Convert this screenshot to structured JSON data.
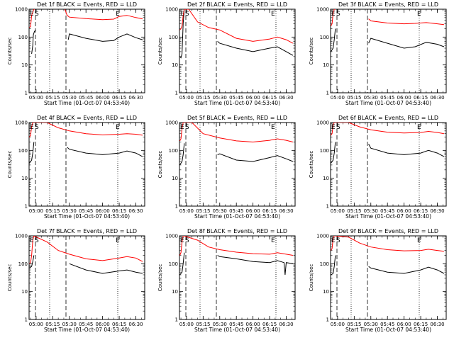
{
  "chart_data": [
    {
      "type": "line",
      "title": "Det 1f BLACK = Events, RED = LLD",
      "xlabel": "Start Time (01-Oct-07 04:53:40)",
      "ylabel": "Counts/sec",
      "xticks": [
        "05:00",
        "05:15",
        "05:30",
        "05:45",
        "06:00",
        "06:15",
        "06:30"
      ],
      "yticks": [
        "1",
        "10",
        "100",
        "1000"
      ],
      "ylim": [
        1,
        1000
      ],
      "yscale": "log",
      "xlim": [
        "04:53:40",
        "06:38:00"
      ],
      "markers": [
        "E",
        "S",
        "E"
      ],
      "series": [
        {
          "name": "BLACK",
          "label": "Events",
          "color": "#000000",
          "x": [
            "04:56:00",
            "04:57:00",
            "04:57:30",
            "04:58:30",
            "04:59:30",
            "05:28",
            "05:29",
            "05:30",
            "05:45",
            "06:00",
            "06:10",
            "06:15",
            "06:22",
            "06:30",
            "06:36"
          ],
          "values": [
            25,
            50,
            120,
            160,
            175,
            null,
            80,
            130,
            90,
            70,
            75,
            100,
            130,
            95,
            80
          ]
        },
        {
          "name": "RED",
          "label": "LLD",
          "color": "#ff0000",
          "x": [
            "04:54",
            "04:55",
            "04:56",
            "04:58",
            "04:59",
            "05:00",
            "05:26",
            "05:28",
            "05:30",
            "05:45",
            "06:00",
            "06:10",
            "06:15",
            "06:22",
            "06:30",
            "06:36"
          ],
          "values": [
            220,
            240,
            600,
            1000,
            1000,
            null,
            1000,
            600,
            520,
            460,
            420,
            440,
            550,
            600,
            500,
            450
          ]
        }
      ]
    },
    {
      "type": "line",
      "title": "Det 2f BLACK = Events, RED = LLD",
      "xlabel": "Start Time (01-Oct-07 04:53:40)",
      "ylabel": "Counts/sec",
      "xticks": [
        "05:00",
        "05:15",
        "05:30",
        "05:45",
        "06:00",
        "06:15",
        "06:30"
      ],
      "yticks": [
        "1",
        "10",
        "100",
        "1000"
      ],
      "ylim": [
        1,
        1000
      ],
      "yscale": "log",
      "xlim": [
        "04:53:40",
        "06:38:00"
      ],
      "markers": [
        "E",
        "S",
        "E"
      ],
      "series": [
        {
          "name": "BLACK",
          "label": "Events",
          "color": "#000000",
          "x": [
            "04:54",
            "04:55",
            "04:56",
            "04:57",
            "04:58",
            "05:25",
            "05:28",
            "05:30",
            "05:45",
            "06:00",
            "06:15",
            "06:22",
            "06:30",
            "06:36"
          ],
          "values": [
            20,
            18,
            25,
            300,
            1000,
            null,
            70,
            60,
            40,
            30,
            40,
            45,
            30,
            22
          ]
        },
        {
          "name": "RED",
          "label": "LLD",
          "color": "#ff0000",
          "x": [
            "04:54",
            "04:55",
            "04:56",
            "04:57",
            "04:58",
            "05:02",
            "05:10",
            "05:20",
            "05:30",
            "05:45",
            "06:00",
            "06:15",
            "06:22",
            "06:30",
            "06:36"
          ],
          "values": [
            180,
            200,
            250,
            600,
            1000,
            1000,
            350,
            220,
            180,
            90,
            70,
            85,
            100,
            80,
            60
          ]
        }
      ]
    },
    {
      "type": "line",
      "title": "Det 3f BLACK = Events, RED = LLD",
      "xlabel": "Start Time (01-Oct-07 04:53:40)",
      "ylabel": "Counts/sec",
      "xticks": [
        "05:00",
        "05:15",
        "05:30",
        "05:45",
        "06:00",
        "06:15",
        "06:30"
      ],
      "yticks": [
        "1",
        "10",
        "100",
        "1000"
      ],
      "ylim": [
        1,
        1000
      ],
      "yscale": "log",
      "xlim": [
        "04:53:40",
        "06:38:00"
      ],
      "markers": [
        "E",
        "S",
        "E"
      ],
      "series": [
        {
          "name": "BLACK",
          "label": "Events",
          "color": "#000000",
          "x": [
            "04:54",
            "04:56",
            "04:57",
            "04:58",
            "05:25",
            "05:28",
            "05:30",
            "05:45",
            "06:00",
            "06:10",
            "06:20",
            "06:30",
            "06:36"
          ],
          "values": [
            30,
            40,
            80,
            200,
            null,
            60,
            90,
            60,
            40,
            45,
            65,
            55,
            45
          ]
        },
        {
          "name": "RED",
          "label": "LLD",
          "color": "#ff0000",
          "x": [
            "04:54",
            "04:55",
            "04:56",
            "04:57",
            "04:58",
            "05:25",
            "05:28",
            "05:30",
            "05:45",
            "06:00",
            "06:10",
            "06:20",
            "06:30",
            "06:36"
          ],
          "values": [
            250,
            300,
            700,
            1000,
            1000,
            null,
            450,
            380,
            320,
            300,
            310,
            330,
            300,
            280
          ]
        }
      ]
    },
    {
      "type": "line",
      "title": "Det 4f BLACK = Events, RED = LLD",
      "xlabel": "Start Time (01-Oct-07 04:53:40)",
      "ylabel": "Counts/sec",
      "xticks": [
        "05:00",
        "05:15",
        "05:30",
        "05:45",
        "06:00",
        "06:15",
        "06:30"
      ],
      "yticks": [
        "1",
        "10",
        "100",
        "1000"
      ],
      "ylim": [
        1,
        1000
      ],
      "yscale": "log",
      "xlim": [
        "04:53:40",
        "06:38:00"
      ],
      "markers": [
        "E",
        "S",
        "E"
      ],
      "series": [
        {
          "name": "BLACK",
          "label": "Events",
          "color": "#000000",
          "x": [
            "04:54",
            "04:56",
            "04:57",
            "04:58",
            "05:25",
            "05:28",
            "05:30",
            "05:45",
            "06:00",
            "06:15",
            "06:22",
            "06:30",
            "06:36"
          ],
          "values": [
            35,
            45,
            80,
            200,
            null,
            130,
            110,
            80,
            70,
            80,
            95,
            80,
            60
          ]
        },
        {
          "name": "RED",
          "label": "LLD",
          "color": "#ff0000",
          "x": [
            "04:54",
            "04:55",
            "04:56",
            "04:57",
            "04:58",
            "05:10",
            "05:20",
            "05:30",
            "05:45",
            "06:00",
            "06:15",
            "06:22",
            "06:30",
            "06:36"
          ],
          "values": [
            300,
            350,
            700,
            1000,
            1000,
            1000,
            650,
            500,
            400,
            360,
            380,
            400,
            380,
            350
          ]
        }
      ]
    },
    {
      "type": "line",
      "title": "Det 5f BLACK = Events, RED = LLD",
      "xlabel": "Start Time (01-Oct-07 04:53:40)",
      "ylabel": "Counts/sec",
      "xticks": [
        "05:00",
        "05:15",
        "05:30",
        "05:45",
        "06:00",
        "06:15",
        "06:30"
      ],
      "yticks": [
        "1",
        "10",
        "100",
        "1000"
      ],
      "ylim": [
        1,
        1000
      ],
      "yscale": "log",
      "xlim": [
        "04:53:40",
        "06:38:00"
      ],
      "markers": [
        "E",
        "S",
        "E"
      ],
      "series": [
        {
          "name": "BLACK",
          "label": "Events",
          "color": "#000000",
          "x": [
            "04:54",
            "04:56",
            "04:57",
            "04:58",
            "05:25",
            "05:28",
            "05:30",
            "05:45",
            "06:00",
            "06:15",
            "06:22",
            "06:30",
            "06:36"
          ],
          "values": [
            30,
            40,
            70,
            180,
            null,
            70,
            75,
            45,
            40,
            55,
            65,
            50,
            40
          ]
        },
        {
          "name": "RED",
          "label": "LLD",
          "color": "#ff0000",
          "x": [
            "04:54",
            "04:55",
            "04:56",
            "04:57",
            "04:58",
            "05:05",
            "05:15",
            "05:30",
            "05:45",
            "06:00",
            "06:15",
            "06:22",
            "06:30",
            "06:36"
          ],
          "values": [
            220,
            260,
            600,
            1000,
            1000,
            1000,
            400,
            280,
            220,
            200,
            230,
            260,
            230,
            200
          ]
        }
      ]
    },
    {
      "type": "line",
      "title": "Det 6f BLACK = Events, RED = LLD",
      "xlabel": "Start Time (01-Oct-07 04:53:40)",
      "ylabel": "Counts/sec",
      "xticks": [
        "05:00",
        "05:15",
        "05:30",
        "05:45",
        "06:00",
        "06:15",
        "06:30"
      ],
      "yticks": [
        "1",
        "10",
        "100",
        "1000"
      ],
      "ylim": [
        1,
        1000
      ],
      "yscale": "log",
      "xlim": [
        "04:53:40",
        "06:38:00"
      ],
      "markers": [
        "E",
        "S",
        "E"
      ],
      "series": [
        {
          "name": "BLACK",
          "label": "Events",
          "color": "#000000",
          "x": [
            "04:54",
            "04:56",
            "04:57",
            "04:58",
            "05:25",
            "05:28",
            "05:30",
            "05:45",
            "06:00",
            "06:15",
            "06:22",
            "06:30",
            "06:36"
          ],
          "values": [
            35,
            45,
            80,
            200,
            null,
            170,
            120,
            80,
            70,
            80,
            100,
            80,
            60
          ]
        },
        {
          "name": "RED",
          "label": "LLD",
          "color": "#ff0000",
          "x": [
            "04:54",
            "04:55",
            "04:56",
            "04:57",
            "04:58",
            "05:10",
            "05:20",
            "05:30",
            "05:45",
            "06:00",
            "06:15",
            "06:22",
            "06:30",
            "06:36"
          ],
          "values": [
            350,
            400,
            800,
            1000,
            1000,
            1000,
            700,
            550,
            450,
            420,
            440,
            480,
            440,
            400
          ]
        }
      ]
    },
    {
      "type": "line",
      "title": "Det 7f BLACK = Events, RED = LLD",
      "xlabel": "Start Time (01-Oct-07 04:53:40)",
      "ylabel": "Counts/sec",
      "xticks": [
        "05:00",
        "05:15",
        "05:30",
        "05:45",
        "06:00",
        "06:15",
        "06:30"
      ],
      "yticks": [
        "1",
        "10",
        "100",
        "1000"
      ],
      "ylim": [
        1,
        1000
      ],
      "yscale": "log",
      "xlim": [
        "04:53:40",
        "06:38:00"
      ],
      "markers": [
        "E",
        "S",
        "E"
      ],
      "series": [
        {
          "name": "BLACK",
          "label": "Events",
          "color": "#000000",
          "x": [
            "04:54",
            "04:56",
            "04:57",
            "04:58",
            "05:28",
            "05:30",
            "05:45",
            "06:00",
            "06:15",
            "06:22",
            "06:30",
            "06:36"
          ],
          "values": [
            70,
            80,
            120,
            200,
            null,
            100,
            60,
            45,
            55,
            60,
            50,
            45
          ]
        },
        {
          "name": "RED",
          "label": "LLD",
          "color": "#ff0000",
          "x": [
            "04:54",
            "04:55",
            "04:56",
            "04:57",
            "04:58",
            "05:10",
            "05:20",
            "05:30",
            "05:45",
            "06:00",
            "06:15",
            "06:22",
            "06:30",
            "06:36"
          ],
          "values": [
            100,
            110,
            200,
            700,
            1000,
            600,
            300,
            220,
            150,
            130,
            160,
            180,
            160,
            120
          ]
        }
      ]
    },
    {
      "type": "line",
      "title": "Det 8f BLACK = Events, RED = LLD",
      "xlabel": "Start Time (01-Oct-07 04:53:40)",
      "ylabel": "Counts/sec",
      "xticks": [
        "05:00",
        "05:15",
        "05:30",
        "05:45",
        "06:00",
        "06:15",
        "06:30"
      ],
      "yticks": [
        "1",
        "10",
        "100",
        "1000"
      ],
      "ylim": [
        1,
        1000
      ],
      "yscale": "log",
      "xlim": [
        "04:53:40",
        "06:38:00"
      ],
      "markers": [
        "E",
        "S",
        "E"
      ],
      "series": [
        {
          "name": "BLACK",
          "label": "Events",
          "color": "#000000",
          "x": [
            "04:54",
            "04:56",
            "04:57",
            "04:58",
            "05:25",
            "05:28",
            "05:30",
            "05:45",
            "06:00",
            "06:15",
            "06:22",
            "06:28",
            "06:29",
            "06:30",
            "06:36"
          ],
          "values": [
            40,
            50,
            100,
            250,
            null,
            200,
            180,
            150,
            120,
            110,
            130,
            110,
            40,
            110,
            100
          ]
        },
        {
          "name": "RED",
          "label": "LLD",
          "color": "#ff0000",
          "x": [
            "04:54",
            "04:55",
            "04:56",
            "04:57",
            "04:58",
            "05:10",
            "05:20",
            "05:30",
            "05:45",
            "06:00",
            "06:15",
            "06:22",
            "06:30",
            "06:36"
          ],
          "values": [
            200,
            250,
            600,
            1000,
            1000,
            700,
            400,
            320,
            260,
            230,
            220,
            250,
            220,
            200
          ]
        }
      ]
    },
    {
      "type": "line",
      "title": "Det 9f BLACK = Events, RED = LLD",
      "xlabel": "Start Time (01-Oct-07 04:53:40)",
      "ylabel": "Counts/sec",
      "xticks": [
        "05:00",
        "05:15",
        "05:30",
        "05:45",
        "06:00",
        "06:15",
        "06:30"
      ],
      "yticks": [
        "1",
        "10",
        "100",
        "1000"
      ],
      "ylim": [
        1,
        1000
      ],
      "yscale": "log",
      "xlim": [
        "04:53:40",
        "06:38:00"
      ],
      "markers": [
        "E",
        "S",
        "E"
      ],
      "series": [
        {
          "name": "BLACK",
          "label": "Events",
          "color": "#000000",
          "x": [
            "04:54",
            "04:56",
            "04:57",
            "04:58",
            "05:25",
            "05:28",
            "05:30",
            "05:45",
            "06:00",
            "06:15",
            "06:22",
            "06:30",
            "06:36"
          ],
          "values": [
            40,
            45,
            80,
            200,
            null,
            80,
            70,
            50,
            45,
            60,
            75,
            60,
            45
          ]
        },
        {
          "name": "RED",
          "label": "LLD",
          "color": "#ff0000",
          "x": [
            "04:54",
            "04:55",
            "04:56",
            "04:57",
            "04:58",
            "05:10",
            "05:20",
            "05:30",
            "05:45",
            "06:00",
            "06:15",
            "06:22",
            "06:30",
            "06:36"
          ],
          "values": [
            300,
            350,
            800,
            1000,
            1000,
            900,
            550,
            400,
            320,
            290,
            300,
            330,
            300,
            280
          ]
        }
      ]
    }
  ]
}
